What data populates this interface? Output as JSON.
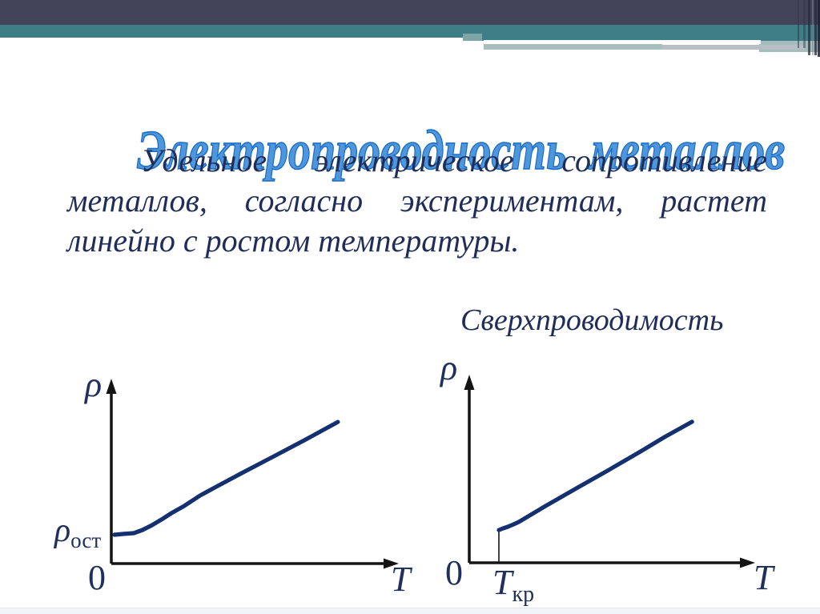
{
  "slide": {
    "title": "Электропроводность  металлов",
    "paragraph_lines": [
      "Удельное электрическое сопротивление",
      "металлов, согласно экспериментам, растет",
      "линейно с ростом температуры."
    ],
    "superconductivity_label": "Сверхпроводимость"
  },
  "colors": {
    "header_dark": "#434459",
    "header_teal": "#3e7e86",
    "header_sage": "#a7c0bd",
    "title_blue": "#2f81d4",
    "text_navy": "#1f2d58",
    "curve_navy": "#143070",
    "axis_black": "#141414"
  },
  "chart_data": [
    {
      "type": "line",
      "title": "",
      "xlabel": "T",
      "ylabel": "ρ",
      "origin_label": "0",
      "y_intercept_label_main": "ρ",
      "y_intercept_label_sub": "ост",
      "axes_numeric": false,
      "legend": "off",
      "grid": "off",
      "points_normalized": [
        [
          0.011,
          0.162
        ],
        [
          0.046,
          0.167
        ],
        [
          0.08,
          0.171
        ],
        [
          0.111,
          0.189
        ],
        [
          0.145,
          0.216
        ],
        [
          0.179,
          0.248
        ],
        [
          0.214,
          0.284
        ],
        [
          0.259,
          0.324
        ],
        [
          0.316,
          0.383
        ],
        [
          0.373,
          0.432
        ],
        [
          0.459,
          0.505
        ],
        [
          0.573,
          0.599
        ],
        [
          0.687,
          0.694
        ],
        [
          0.806,
          0.797
        ]
      ]
    },
    {
      "type": "line",
      "title": "Сверхпроводимость",
      "xlabel": "T",
      "ylabel": "ρ",
      "origin_label": "0",
      "critical_label_main": "T",
      "critical_label_sub": "кр",
      "zero_below_critical": true,
      "transition": {
        "t": 0.106,
        "r": 0.181
      },
      "axes_numeric": false,
      "legend": "off",
      "grid": "off",
      "points_normalized": [
        [
          0.106,
          0.181
        ],
        [
          0.12,
          0.19
        ],
        [
          0.138,
          0.199
        ],
        [
          0.158,
          0.212
        ],
        [
          0.178,
          0.226
        ],
        [
          0.269,
          0.31
        ],
        [
          0.384,
          0.412
        ],
        [
          0.499,
          0.513
        ],
        [
          0.613,
          0.615
        ],
        [
          0.699,
          0.695
        ],
        [
          0.797,
          0.779
        ]
      ]
    }
  ]
}
